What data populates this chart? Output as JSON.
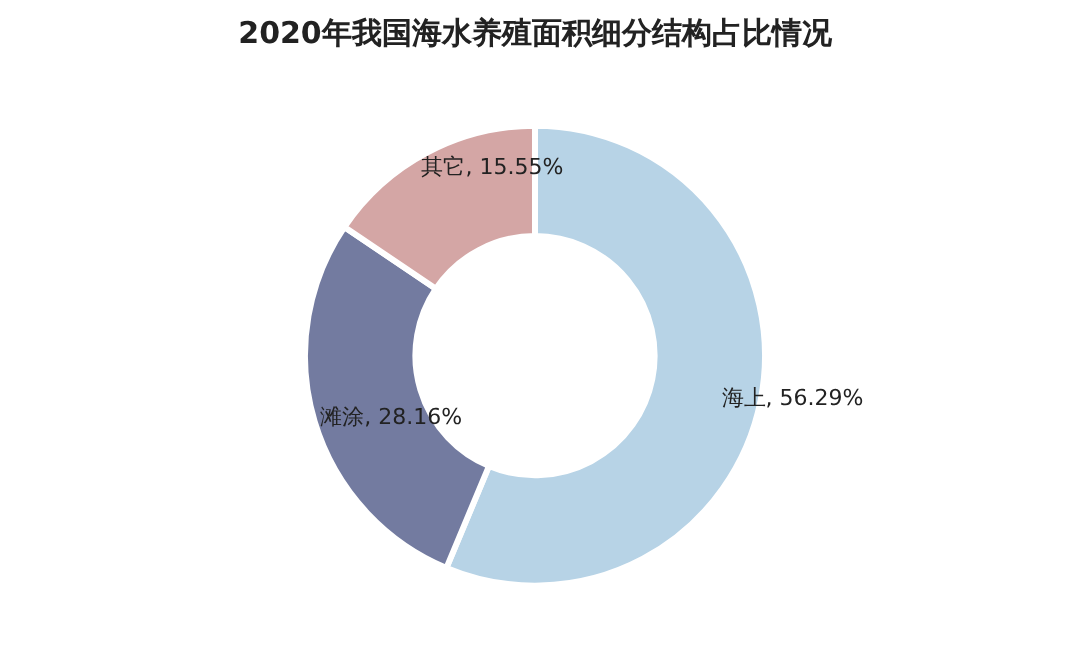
{
  "chart_data": {
    "type": "donut",
    "title": "2020年我国海水养殖面积细分结构占比情况",
    "categories": [
      "海上",
      "滩涂",
      "其它"
    ],
    "values": [
      56.29,
      28.16,
      15.55
    ],
    "colors": [
      "#b7d3e6",
      "#737ba0",
      "#d4a6a5"
    ],
    "value_labels": [
      ", 56.29%",
      ", 28.16%",
      ", 15.55%"
    ]
  }
}
